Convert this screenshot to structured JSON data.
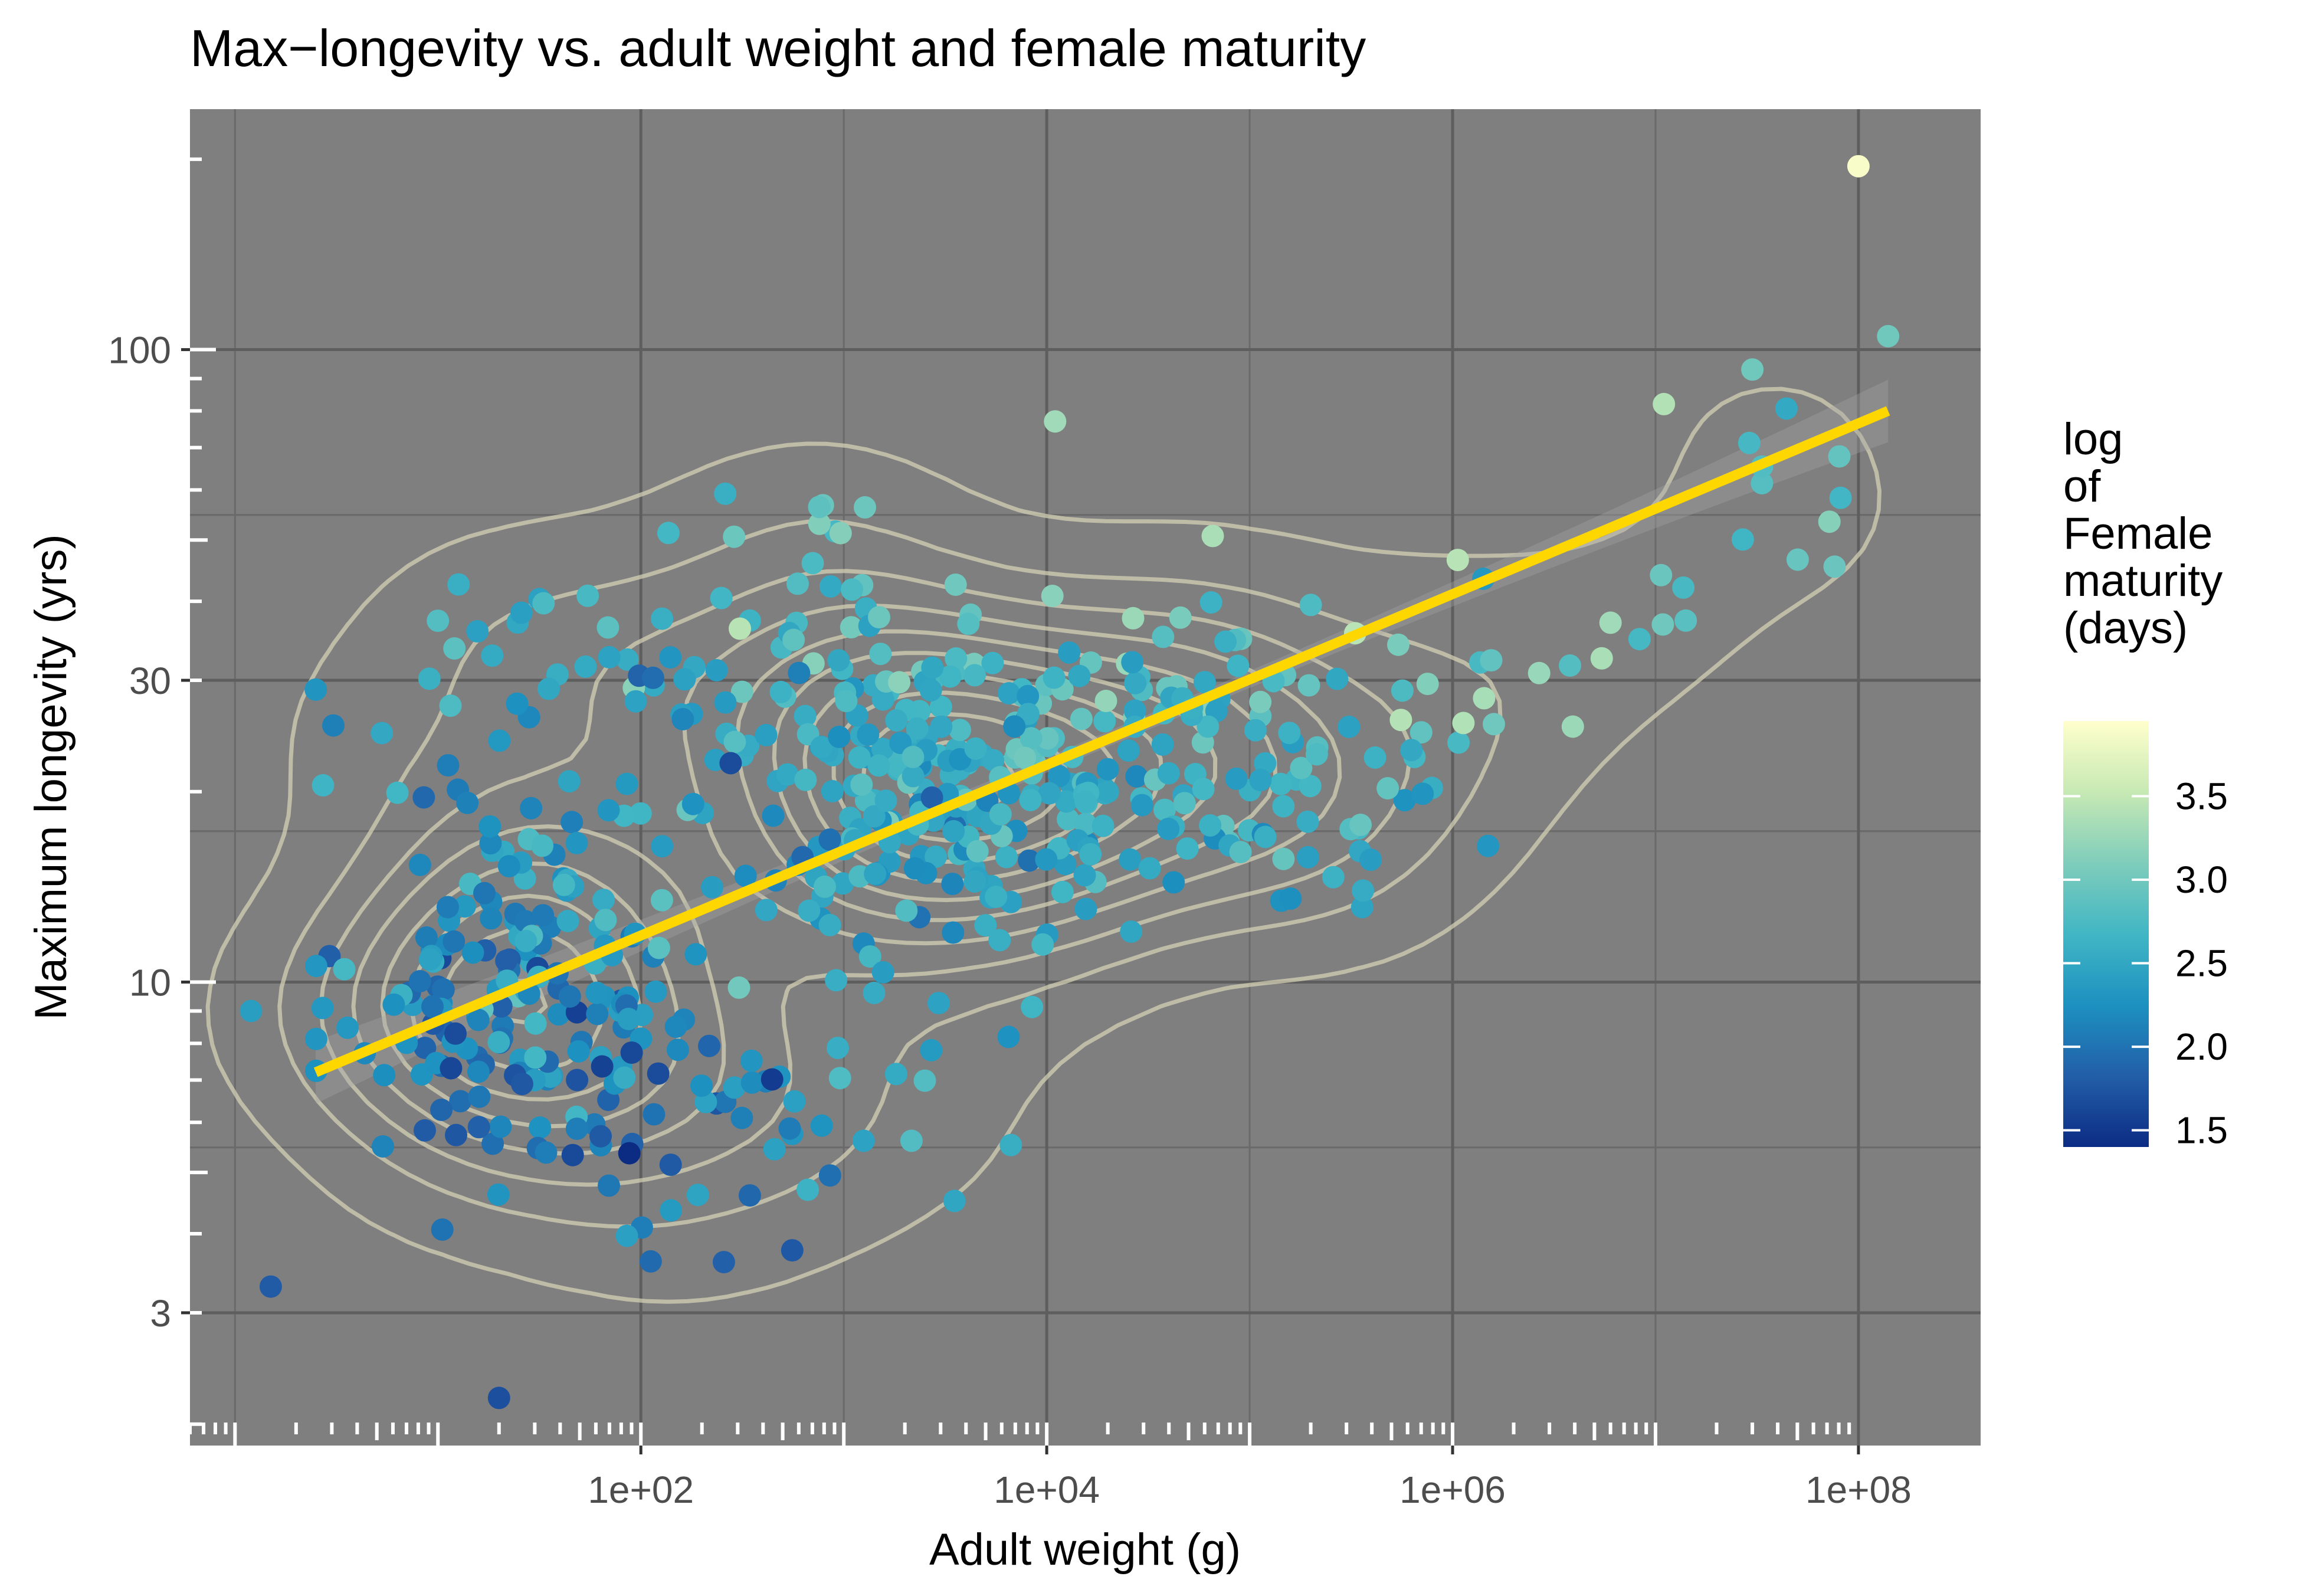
{
  "chart_data": {
    "type": "scatter",
    "title": "Max−longevity vs. adult weight and female maturity",
    "xlabel": "Adult weight (g)",
    "ylabel": "Maximum longevity (yrs)",
    "x_scale": "log10",
    "y_scale": "log10",
    "xlim": [
      0.6,
      400000000
    ],
    "ylim": [
      1.85,
      240
    ],
    "x_ticks": [
      100,
      10000,
      1000000,
      100000000
    ],
    "x_tick_labels": [
      "1e+02",
      "1e+04",
      "1e+06",
      "1e+08"
    ],
    "y_ticks": [
      3,
      10,
      30,
      100
    ],
    "y_tick_labels": [
      "3",
      "10",
      "30",
      "100"
    ],
    "grid": true,
    "panel_background": "#7f7f7f",
    "legend": {
      "title": "log\nof\nFemale\nmaturity\n(days)",
      "position": "right",
      "breaks": [
        1.5,
        2.0,
        2.5,
        3.0,
        3.5
      ],
      "break_labels": [
        "1.5",
        "2.0",
        "2.5",
        "3.0",
        "3.5"
      ],
      "range": [
        1.4,
        3.95
      ],
      "colors": [
        "#0c2c84",
        "#225ea8",
        "#1d91c0",
        "#41b6c4",
        "#7fcdbb",
        "#c7e9b4",
        "#ffffcc"
      ]
    },
    "trend_line": {
      "method": "lm",
      "color": "#ffd700",
      "x_range": [
        2.5,
        140000000
      ],
      "y_start": 7.2,
      "y_end": 80,
      "ci_band_color": "#a6a6a6"
    },
    "density_contours": {
      "color": "#d9d6b8",
      "opacity": 0.7
    },
    "highlight_points": [
      {
        "x": 100000000,
        "y": 195,
        "c": 3.9
      },
      {
        "x": 140000000,
        "y": 105,
        "c": 3.0
      },
      {
        "x": 30000000,
        "y": 93,
        "c": 3.0
      },
      {
        "x": 11000000,
        "y": 82,
        "c": 3.4
      },
      {
        "x": 11000,
        "y": 77,
        "c": 3.3
      },
      {
        "x": 6000000,
        "y": 37,
        "c": 3.3
      },
      {
        "x": 2.5,
        "y": 29,
        "c": 2.3
      },
      {
        "x": 1.5,
        "y": 3.3,
        "c": 1.8
      },
      {
        "x": 20,
        "y": 2.2,
        "c": 1.7
      },
      {
        "x": 1.2,
        "y": 9.0,
        "c": 2.4
      }
    ],
    "point_count_estimate": 650
  }
}
